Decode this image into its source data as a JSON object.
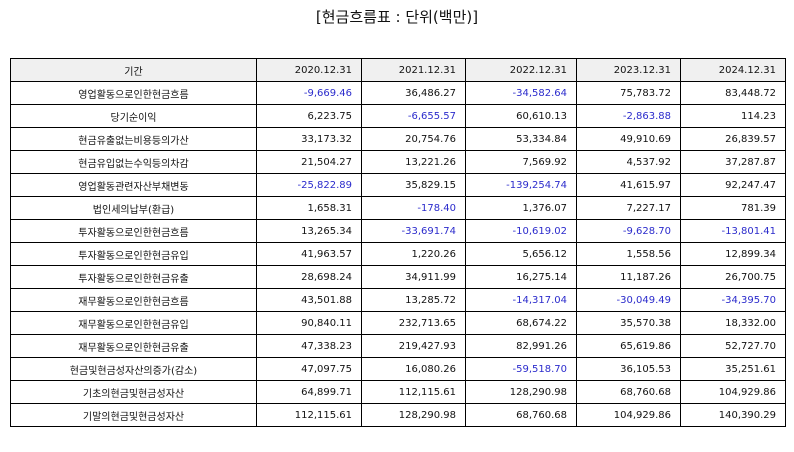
{
  "title": "[현금흐름표 : 단위(백만)]",
  "colors": {
    "negative": "#2b2bcc",
    "header_bg": "#f0f0f0"
  },
  "table": {
    "header": {
      "label": "기간",
      "periods": [
        "2020.12.31",
        "2021.12.31",
        "2022.12.31",
        "2023.12.31",
        "2024.12.31"
      ]
    },
    "rows": [
      {
        "label": "영업활동으로인한현금흐름",
        "values": [
          "-9,669.46",
          "36,486.27",
          "-34,582.64",
          "75,783.72",
          "83,448.72"
        ]
      },
      {
        "label": "당기순이익",
        "values": [
          "6,223.75",
          "-6,655.57",
          "60,610.13",
          "-2,863.88",
          "114.23"
        ]
      },
      {
        "label": "현금유출없는비용등의가산",
        "values": [
          "33,173.32",
          "20,754.76",
          "53,334.84",
          "49,910.69",
          "26,839.57"
        ]
      },
      {
        "label": "현금유입없는수익등의차감",
        "values": [
          "21,504.27",
          "13,221.26",
          "7,569.92",
          "4,537.92",
          "37,287.87"
        ]
      },
      {
        "label": "영업활동관련자산부채변동",
        "values": [
          "-25,822.89",
          "35,829.15",
          "-139,254.74",
          "41,615.97",
          "92,247.47"
        ]
      },
      {
        "label": "법인세의납부(환급)",
        "values": [
          "1,658.31",
          "-178.40",
          "1,376.07",
          "7,227.17",
          "781.39"
        ]
      },
      {
        "label": "투자활동으로인한현금흐름",
        "values": [
          "13,265.34",
          "-33,691.74",
          "-10,619.02",
          "-9,628.70",
          "-13,801.41"
        ]
      },
      {
        "label": "투자활동으로인한현금유입",
        "values": [
          "41,963.57",
          "1,220.26",
          "5,656.12",
          "1,558.56",
          "12,899.34"
        ]
      },
      {
        "label": "투자활동으로인한현금유출",
        "values": [
          "28,698.24",
          "34,911.99",
          "16,275.14",
          "11,187.26",
          "26,700.75"
        ]
      },
      {
        "label": "재무활동으로인한현금흐름",
        "values": [
          "43,501.88",
          "13,285.72",
          "-14,317.04",
          "-30,049.49",
          "-34,395.70"
        ]
      },
      {
        "label": "재무활동으로인한현금유입",
        "values": [
          "90,840.11",
          "232,713.65",
          "68,674.22",
          "35,570.38",
          "18,332.00"
        ]
      },
      {
        "label": "재무활동으로인한현금유출",
        "values": [
          "47,338.23",
          "219,427.93",
          "82,991.26",
          "65,619.86",
          "52,727.70"
        ]
      },
      {
        "label": "현금및현금성자산의증가(감소)",
        "values": [
          "47,097.75",
          "16,080.26",
          "-59,518.70",
          "36,105.53",
          "35,251.61"
        ]
      },
      {
        "label": "기초의현금및현금성자산",
        "values": [
          "64,899.71",
          "112,115.61",
          "128,290.98",
          "68,760.68",
          "104,929.86"
        ]
      },
      {
        "label": "기말의현금및현금성자산",
        "values": [
          "112,115.61",
          "128,290.98",
          "68,760.68",
          "104,929.86",
          "140,390.29"
        ]
      }
    ]
  }
}
